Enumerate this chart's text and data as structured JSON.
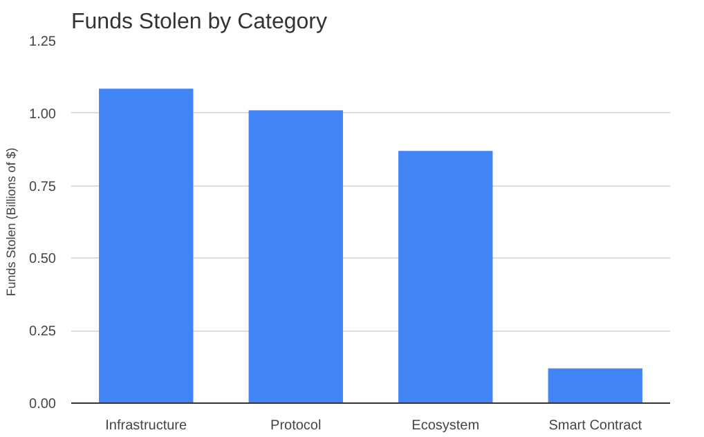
{
  "chart_data": {
    "type": "bar",
    "title": "Funds Stolen by Category",
    "ylabel": "Funds Stolen (Billions of $)",
    "categories": [
      "Infrastructure",
      "Protocol",
      "Ecosystem",
      "Smart Contract"
    ],
    "values": [
      1.085,
      1.01,
      0.87,
      0.12
    ],
    "color": "#4285f4",
    "ylim": [
      0,
      1.25
    ],
    "yticks": [
      {
        "value": 0,
        "label": "0.00"
      },
      {
        "value": 0.25,
        "label": "0.25"
      },
      {
        "value": 0.5,
        "label": "0.50"
      },
      {
        "value": 0.75,
        "label": "0.75"
      },
      {
        "value": 1,
        "label": "1.00"
      },
      {
        "value": 1.25,
        "label": "1.25"
      }
    ],
    "grid": "y"
  }
}
